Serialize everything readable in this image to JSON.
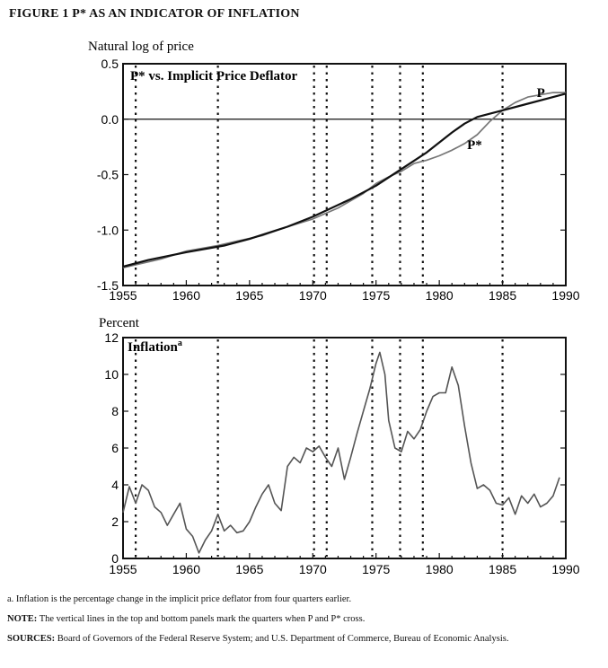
{
  "figure": {
    "title": "FIGURE 1  P* AS AN INDICATOR OF INFLATION"
  },
  "chart_data": [
    {
      "type": "line",
      "title": "P* vs.  Implicit Price Deflator",
      "ylabel": "Natural log of price",
      "xlim": [
        1955,
        1990
      ],
      "ylim": [
        -1.5,
        0.5
      ],
      "xticks": [
        "1955",
        "1960",
        "1965",
        "1970",
        "1975",
        "1980",
        "1985",
        "1990"
      ],
      "yticks": [
        "0.5",
        "0.0",
        "-0.5",
        "-1.0",
        "-1.5"
      ],
      "hline": 0.0,
      "grid": false,
      "series": [
        {
          "name": "P",
          "x": [
            1955,
            1957,
            1960,
            1963,
            1965,
            1968,
            1970,
            1973,
            1975,
            1977,
            1979,
            1981,
            1982,
            1983,
            1985,
            1987,
            1989,
            1990
          ],
          "values": [
            -1.33,
            -1.27,
            -1.2,
            -1.14,
            -1.08,
            -0.97,
            -0.88,
            -0.72,
            -0.6,
            -0.45,
            -0.3,
            -0.12,
            -0.04,
            0.02,
            0.08,
            0.14,
            0.2,
            0.23
          ]
        },
        {
          "name": "P*",
          "x": [
            1955,
            1958,
            1960,
            1962.5,
            1964,
            1966,
            1968,
            1970,
            1972,
            1974,
            1975,
            1976,
            1977,
            1978,
            1979,
            1980,
            1981,
            1982,
            1983,
            1984,
            1985,
            1986,
            1987,
            1988,
            1989,
            1990
          ],
          "values": [
            -1.34,
            -1.26,
            -1.19,
            -1.14,
            -1.1,
            -1.05,
            -0.97,
            -0.9,
            -0.8,
            -0.67,
            -0.58,
            -0.52,
            -0.47,
            -0.4,
            -0.37,
            -0.33,
            -0.28,
            -0.22,
            -0.14,
            -0.02,
            0.08,
            0.15,
            0.2,
            0.22,
            0.24,
            0.24
          ]
        }
      ],
      "series_labels": [
        {
          "text": "P",
          "x": 1987.7,
          "y": 0.2
        },
        {
          "text": "P*",
          "x": 1982.2,
          "y": -0.27
        }
      ],
      "vlines": [
        1956,
        1962.5,
        1970.1,
        1971.1,
        1974.7,
        1976.9,
        1978.7,
        1985
      ]
    },
    {
      "type": "line",
      "title": "Inflation",
      "title_superscript": "a",
      "ylabel": "Percent",
      "xlim": [
        1955,
        1990
      ],
      "ylim": [
        0,
        12
      ],
      "xticks": [
        "1955",
        "1960",
        "1965",
        "1970",
        "1975",
        "1980",
        "1985",
        "1990"
      ],
      "yticks": [
        "12",
        "10",
        "8",
        "6",
        "4",
        "2",
        "0"
      ],
      "grid": false,
      "series": [
        {
          "name": "Inflation",
          "x": [
            1955,
            1955.5,
            1956,
            1956.5,
            1957,
            1957.5,
            1958,
            1958.5,
            1959,
            1959.5,
            1960,
            1960.5,
            1961,
            1961.5,
            1962,
            1962.5,
            1963,
            1963.5,
            1964,
            1964.5,
            1965,
            1965.5,
            1966,
            1966.5,
            1967,
            1967.5,
            1968,
            1968.5,
            1969,
            1969.5,
            1970,
            1970.5,
            1971,
            1971.5,
            1972,
            1972.5,
            1973,
            1973.5,
            1974,
            1974.5,
            1975,
            1975.3,
            1975.7,
            1976,
            1976.5,
            1977,
            1977.5,
            1978,
            1978.5,
            1979,
            1979.5,
            1980,
            1980.5,
            1981,
            1981.5,
            1982,
            1982.5,
            1983,
            1983.5,
            1984,
            1984.5,
            1985,
            1985.5,
            1986,
            1986.5,
            1987,
            1987.5,
            1988,
            1988.5,
            1989,
            1989.5
          ],
          "values": [
            2.5,
            3.9,
            3.0,
            4.0,
            3.7,
            2.8,
            2.5,
            1.8,
            2.4,
            3.0,
            1.6,
            1.2,
            0.3,
            1.0,
            1.5,
            2.4,
            1.5,
            1.8,
            1.4,
            1.5,
            2.0,
            2.8,
            3.5,
            4.0,
            3.0,
            2.6,
            5.0,
            5.5,
            5.2,
            6.0,
            5.8,
            6.1,
            5.5,
            5.0,
            6.0,
            4.3,
            5.5,
            6.8,
            8.0,
            9.2,
            10.6,
            11.2,
            10.0,
            7.5,
            6.0,
            5.8,
            6.9,
            6.5,
            7.0,
            8.0,
            8.8,
            9.0,
            9.0,
            10.4,
            9.4,
            7.2,
            5.2,
            3.8,
            4.0,
            3.7,
            3.0,
            2.9,
            3.3,
            2.4,
            3.4,
            3.0,
            3.5,
            2.8,
            3.0,
            3.4,
            4.4
          ]
        }
      ],
      "vlines": [
        1956,
        1962.5,
        1970.1,
        1971.1,
        1974.7,
        1976.9,
        1978.7,
        1985
      ]
    }
  ],
  "footnotes": {
    "a_marker": "a.",
    "a_text": "Inflation is the percentage change in the implicit price deflator from four quarters earlier.",
    "note_label": "NOTE:",
    "note_text": "The vertical lines in the top and bottom panels mark the quarters when P and P* cross.",
    "sources_label": "SOURCES:",
    "sources_text": "Board of Governors of the Federal Reserve System; and U.S. Department of Commerce, Bureau of Economic Analysis."
  }
}
